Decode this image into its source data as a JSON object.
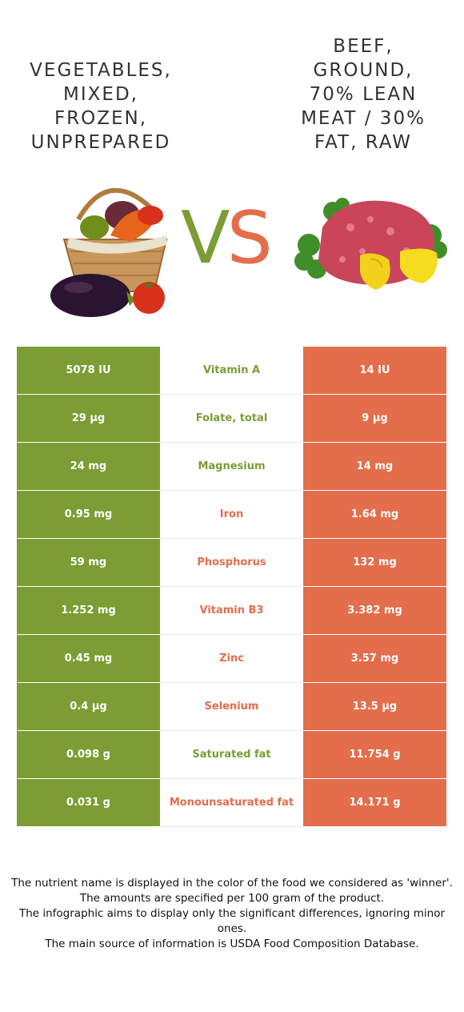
{
  "header": {
    "left_title": "VEGETABLES,\nMIXED,\nFROZEN,\nUNPREPARED",
    "right_title": "BEEF,\nGROUND,\n70% LEAN\nMEAT / 30%\nFAT, RAW",
    "vs_v": "V",
    "vs_s": "S"
  },
  "colors": {
    "left_accent": "#7b9d34",
    "right_accent": "#e46d4c"
  },
  "rows": [
    {
      "left": "5078 IU",
      "nutrient": "Vitamin A",
      "right": "14 IU",
      "winner": "left"
    },
    {
      "left": "29 µg",
      "nutrient": "Folate, total",
      "right": "9 µg",
      "winner": "left"
    },
    {
      "left": "24 mg",
      "nutrient": "Magnesium",
      "right": "14 mg",
      "winner": "left"
    },
    {
      "left": "0.95 mg",
      "nutrient": "Iron",
      "right": "1.64 mg",
      "winner": "right"
    },
    {
      "left": "59 mg",
      "nutrient": "Phosphorus",
      "right": "132 mg",
      "winner": "right"
    },
    {
      "left": "1.252 mg",
      "nutrient": "Vitamin B3",
      "right": "3.382 mg",
      "winner": "right"
    },
    {
      "left": "0.45 mg",
      "nutrient": "Zinc",
      "right": "3.57 mg",
      "winner": "right"
    },
    {
      "left": "0.4 µg",
      "nutrient": "Selenium",
      "right": "13.5 µg",
      "winner": "right"
    },
    {
      "left": "0.098 g",
      "nutrient": "Saturated fat",
      "right": "11.754 g",
      "winner": "left"
    },
    {
      "left": "0.031 g",
      "nutrient": "Monounsaturated fat",
      "right": "14.171 g",
      "winner": "right"
    }
  ],
  "footnote": {
    "line1": "The nutrient name is displayed in the color of the food we considered as 'winner'.",
    "line2": "The amounts are specified per 100 gram of the product.",
    "line3": "The infographic aims to display only the significant differences, ignoring minor ones.",
    "line4": "The main source of information is USDA Food Composition Database."
  }
}
